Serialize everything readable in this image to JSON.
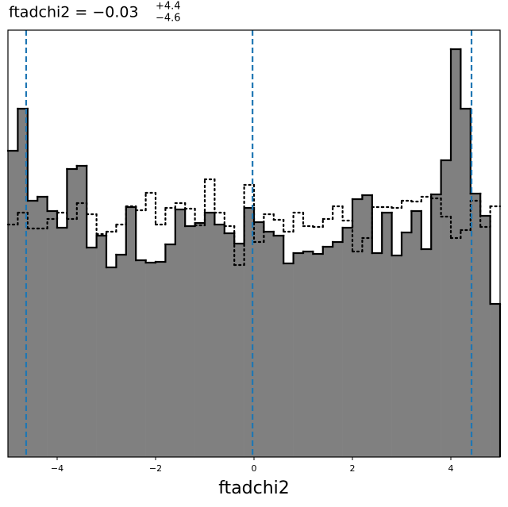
{
  "chart_data": {
    "type": "histogram",
    "title": "ftadchi2 = −0.03",
    "title_upper": "+4.4",
    "title_lower": "−4.6",
    "xlabel": "ftadchi2",
    "bins": [
      -5,
      -4.8,
      -4.6,
      -4.4,
      -4.2,
      -4,
      -3.8,
      -3.6,
      -3.4,
      -3.2,
      -3,
      -2.8,
      -2.6,
      -2.4,
      -2.2,
      -2,
      -1.8,
      -1.6,
      -1.4,
      -1.2,
      -1,
      -0.8,
      -0.6,
      -0.4,
      -0.2,
      0,
      0.2,
      0.4,
      0.6,
      0.8,
      1,
      1.2,
      1.4,
      1.6,
      1.8,
      2,
      2.2,
      2.4,
      2.6,
      2.8,
      3,
      3.2,
      3.4,
      3.6,
      3.8,
      4,
      4.2,
      4.4,
      4.6,
      4.8,
      5
    ],
    "series": [
      {
        "color": "#808080",
        "edge_color": "#000000",
        "style": "filled",
        "values": [
          386,
          439,
          323,
          328,
          310,
          289,
          363,
          367,
          264,
          279,
          239,
          255,
          315,
          248,
          245,
          246,
          268,
          312,
          291,
          295,
          308,
          293,
          282,
          269,
          314,
          296,
          284,
          279,
          244,
          257,
          259,
          256,
          265,
          271,
          289,
          325,
          330,
          257,
          308,
          254,
          283,
          310,
          262,
          331,
          374,
          514,
          439,
          332,
          304,
          193
        ]
      },
      {
        "color": "#000000",
        "style": "dotted",
        "values": [
          293,
          308,
          288,
          288,
          300,
          308,
          300,
          320,
          306,
          281,
          284,
          293,
          316,
          311,
          333,
          293,
          314,
          320,
          313,
          292,
          350,
          308,
          291,
          242,
          343,
          271,
          306,
          299,
          284,
          308,
          291,
          290,
          300,
          316,
          298,
          259,
          276,
          315,
          315,
          314,
          323,
          322,
          328,
          326,
          303,
          276,
          286,
          323,
          290,
          316
        ]
      }
    ],
    "quantiles": [
      -4.63,
      -0.03,
      4.42
    ],
    "quantile_color": "#1f77b4",
    "xlim": [
      -5,
      5
    ],
    "ylim": [
      0,
      538
    ],
    "xticks": [
      {
        "value": -4,
        "label": "−4"
      },
      {
        "value": -2,
        "label": "−2"
      },
      0,
      2,
      4
    ]
  }
}
